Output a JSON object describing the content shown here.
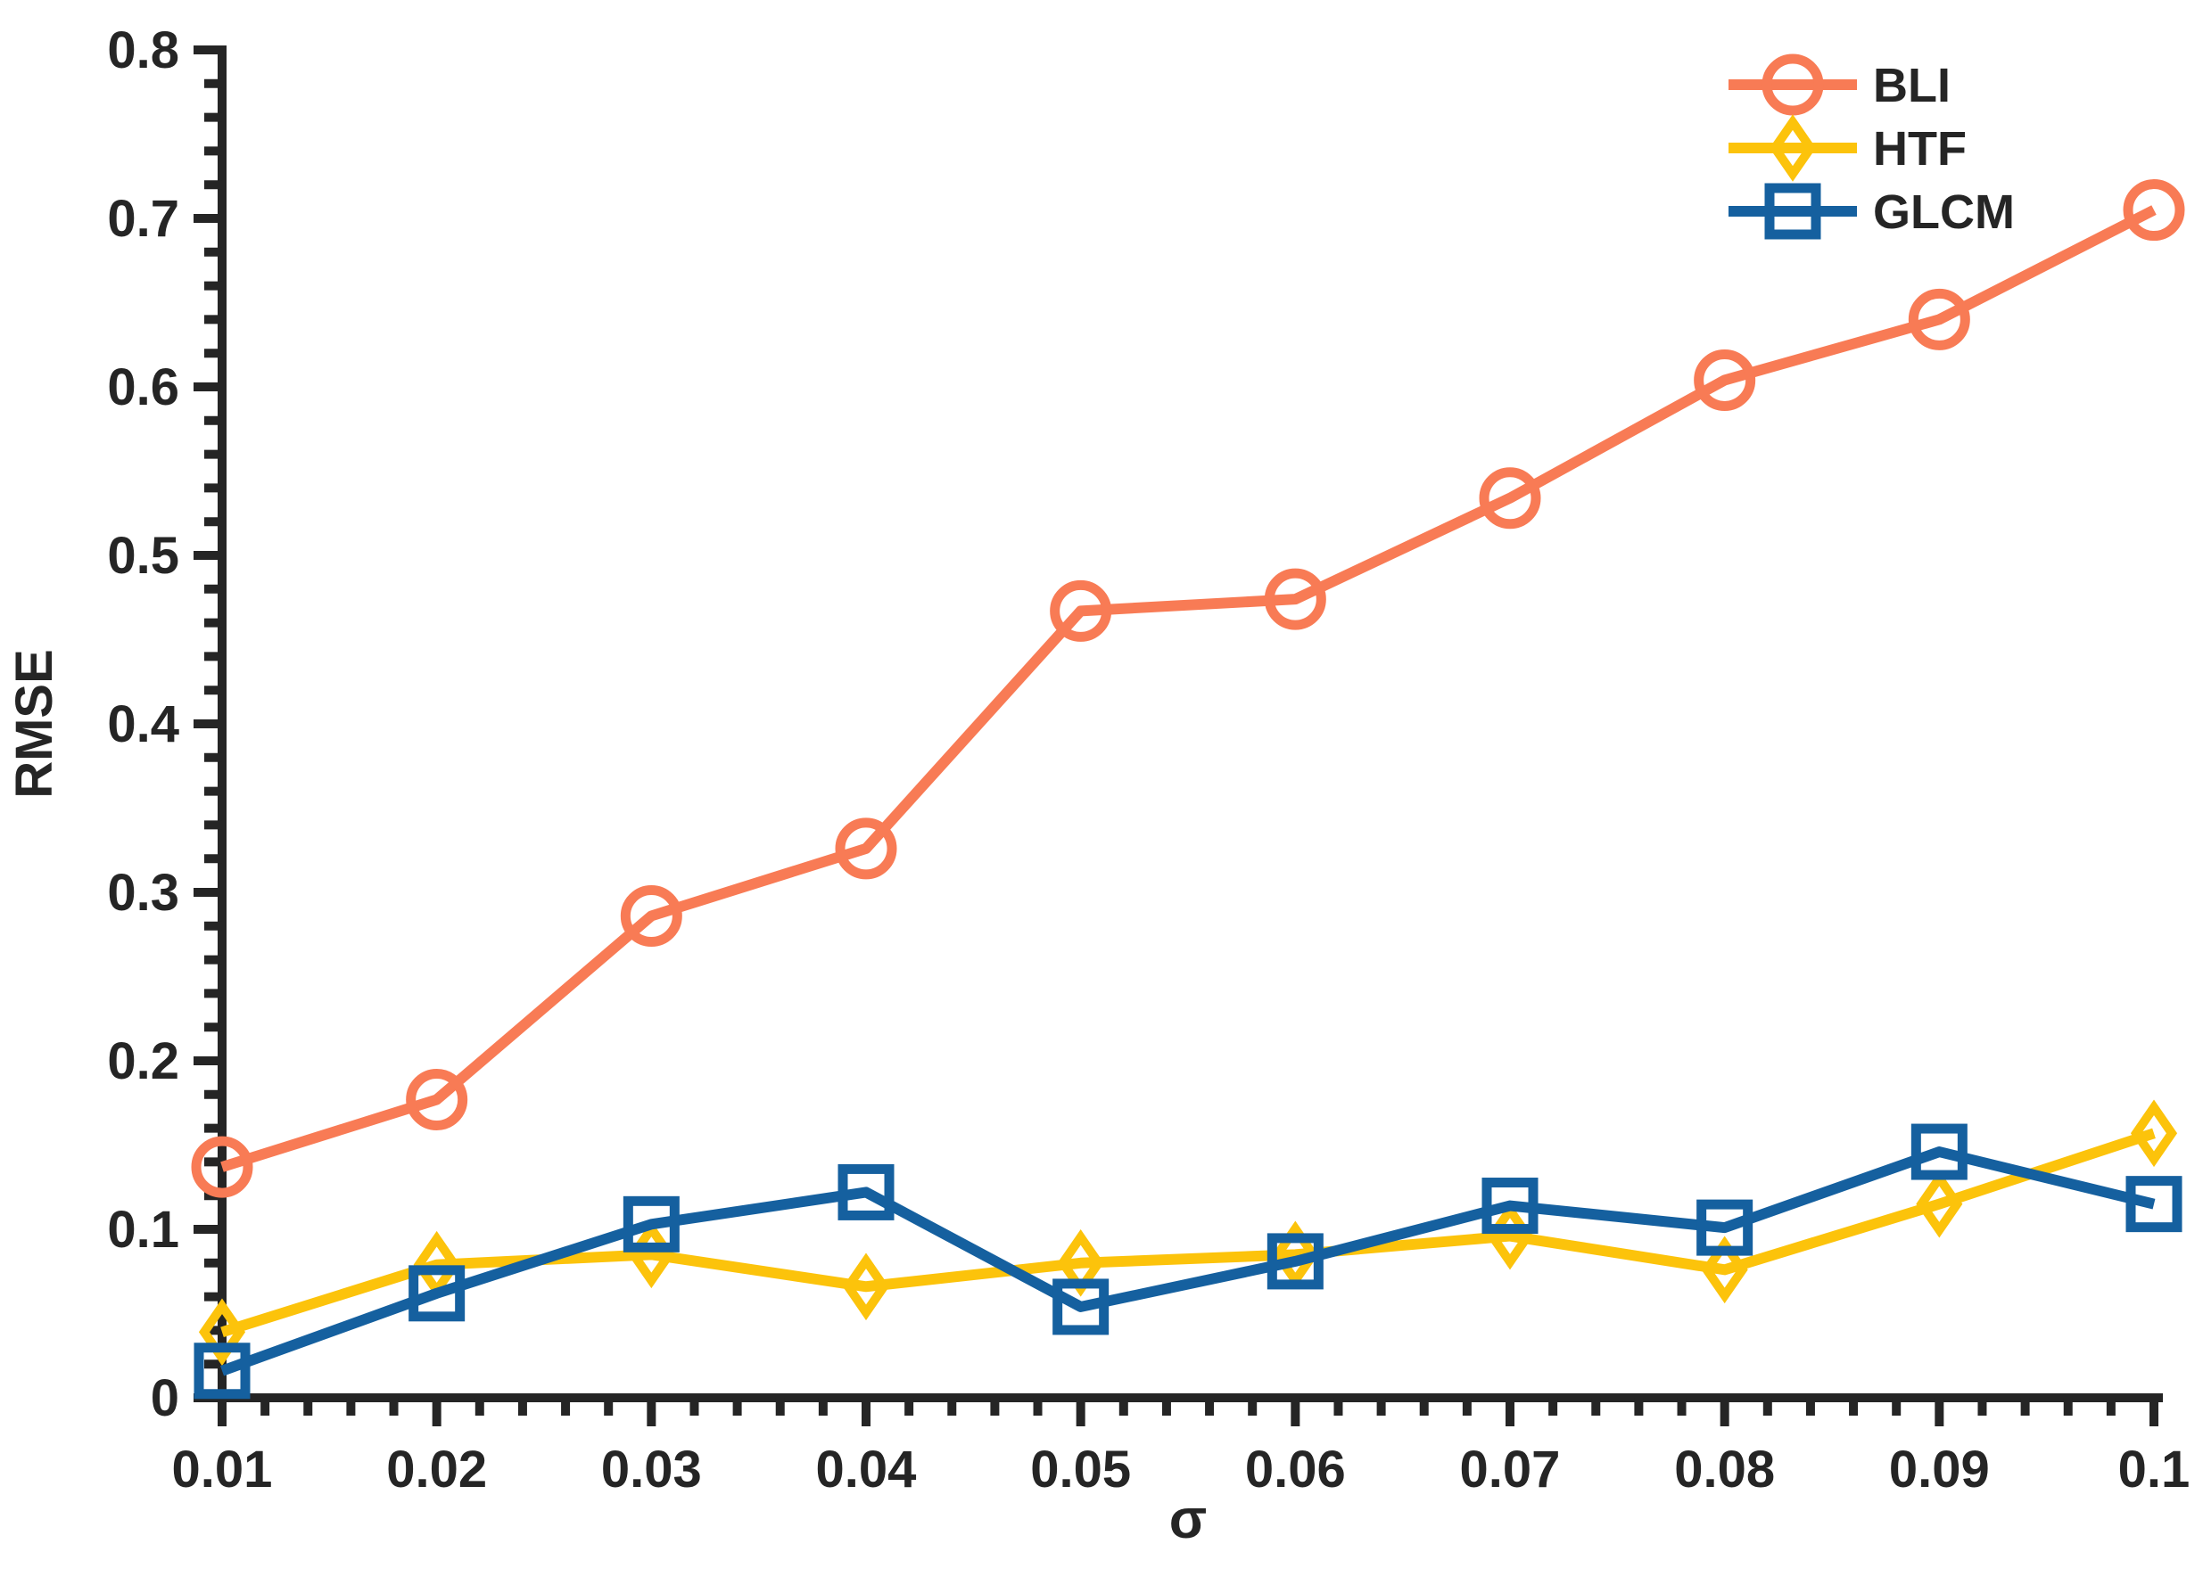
{
  "chart_data": {
    "type": "line",
    "title": "",
    "xlabel": "σ",
    "ylabel": "RMSE",
    "x": [
      0.01,
      0.02,
      0.03,
      0.04,
      0.05,
      0.06,
      0.07,
      0.08,
      0.09,
      0.1
    ],
    "xlim": [
      0.01,
      0.1
    ],
    "ylim": [
      0,
      0.8
    ],
    "x_major_step": 0.01,
    "x_minor_step": 0.002,
    "y_major_step": 0.1,
    "y_minor_step": 0.02,
    "x_tick_labels": [
      "0.01",
      "0.02",
      "0.03",
      "0.04",
      "0.05",
      "0.06",
      "0.07",
      "0.08",
      "0.09",
      "0.1"
    ],
    "y_tick_labels": [
      "0",
      "0.1",
      "0.2",
      "0.3",
      "0.4",
      "0.5",
      "0.6",
      "0.7",
      "0.8"
    ],
    "grid": false,
    "legend_position": "top-right",
    "legend_frame": false,
    "axis_color": "#252525",
    "series": [
      {
        "name": "BLI",
        "color": "#F87B55",
        "marker": "circle",
        "values": [
          0.137,
          0.177,
          0.286,
          0.326,
          0.467,
          0.474,
          0.534,
          0.604,
          0.64,
          0.705
        ]
      },
      {
        "name": "HTF",
        "color": "#FCC30B",
        "marker": "diamond",
        "values": [
          0.039,
          0.079,
          0.085,
          0.066,
          0.08,
          0.085,
          0.096,
          0.076,
          0.115,
          0.157
        ]
      },
      {
        "name": "GLCM",
        "color": "#15609F",
        "marker": "square",
        "values": [
          0.016,
          0.062,
          0.103,
          0.122,
          0.054,
          0.081,
          0.114,
          0.101,
          0.146,
          0.115
        ]
      }
    ]
  }
}
